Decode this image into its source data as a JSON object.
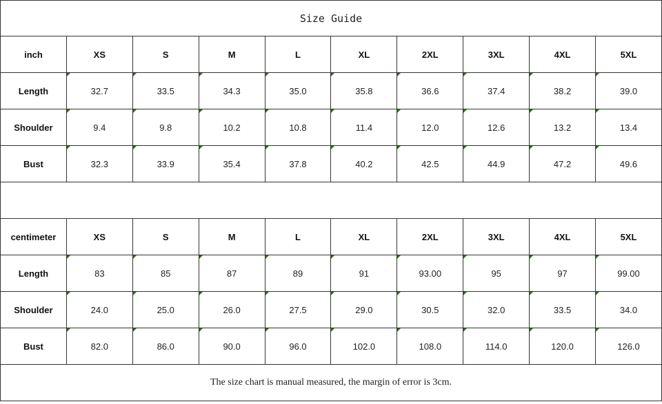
{
  "title": "Size Guide",
  "tables": [
    {
      "unit": "inch",
      "sizes": [
        "XS",
        "S",
        "M",
        "L",
        "XL",
        "2XL",
        "3XL",
        "4XL",
        "5XL"
      ],
      "rows": [
        {
          "label": "Length",
          "values": [
            "32.7",
            "33.5",
            "34.3",
            "35.0",
            "35.8",
            "36.6",
            "37.4",
            "38.2",
            "39.0"
          ]
        },
        {
          "label": "Shoulder",
          "values": [
            "9.4",
            "9.8",
            "10.2",
            "10.8",
            "11.4",
            "12.0",
            "12.6",
            "13.2",
            "13.4"
          ]
        },
        {
          "label": "Bust",
          "values": [
            "32.3",
            "33.9",
            "35.4",
            "37.8",
            "40.2",
            "42.5",
            "44.9",
            "47.2",
            "49.6"
          ]
        }
      ]
    },
    {
      "unit": "centimeter",
      "sizes": [
        "XS",
        "S",
        "M",
        "L",
        "XL",
        "2XL",
        "3XL",
        "4XL",
        "5XL"
      ],
      "rows": [
        {
          "label": "Length",
          "values": [
            "83",
            "85",
            "87",
            "89",
            "91",
            "93.00",
            "95",
            "97",
            "99.00"
          ]
        },
        {
          "label": "Shoulder",
          "values": [
            "24.0",
            "25.0",
            "26.0",
            "27.5",
            "29.0",
            "30.5",
            "32.0",
            "33.5",
            "34.0"
          ]
        },
        {
          "label": "Bust",
          "values": [
            "82.0",
            "86.0",
            "90.0",
            "96.0",
            "102.0",
            "108.0",
            "114.0",
            "120.0",
            "126.0"
          ]
        }
      ]
    }
  ],
  "note": "The size chart is manual measured, the margin of error is 3cm."
}
